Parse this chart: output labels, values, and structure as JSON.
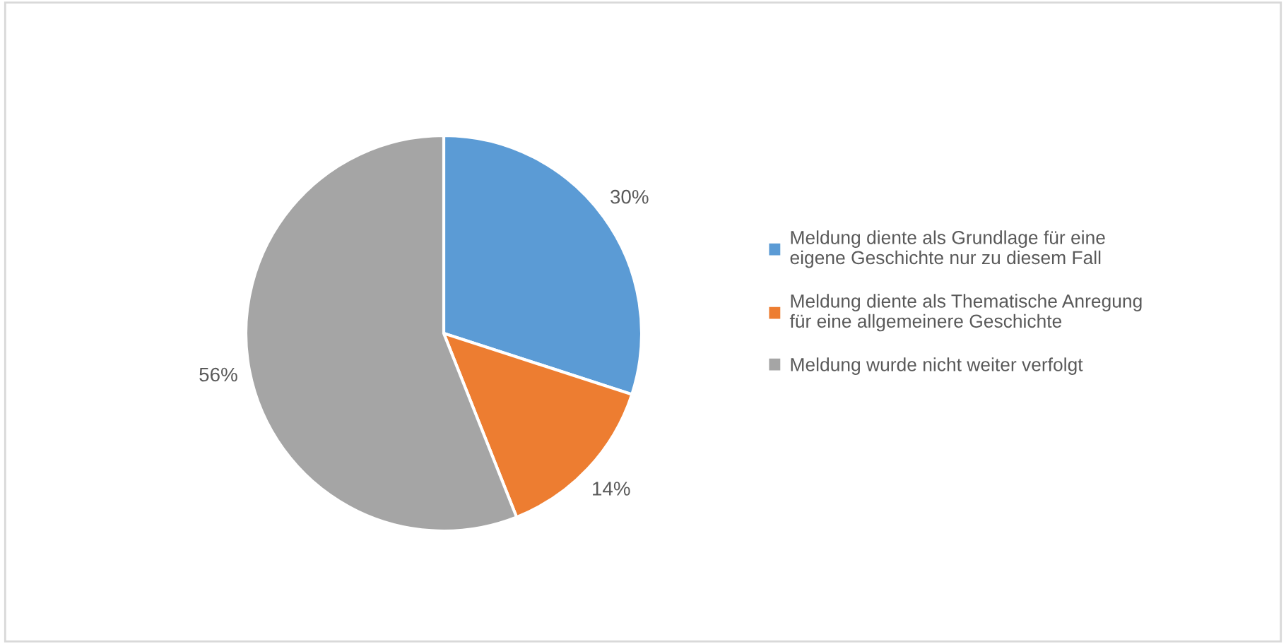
{
  "chart_data": {
    "type": "pie",
    "categories": [
      "Meldung diente als Grundlage für eine\neigene Geschichte nur zu diesem Fall",
      "Meldung diente als Thematische Anregung\nfür eine allgemeinere Geschichte",
      "Meldung wurde nicht weiter verfolgt"
    ],
    "values": [
      30,
      14,
      56
    ],
    "colors": [
      "#5b9bd5",
      "#ed7d31",
      "#a5a5a5"
    ],
    "value_labels": [
      "30%",
      "14%",
      "56%"
    ],
    "legend": "right"
  }
}
